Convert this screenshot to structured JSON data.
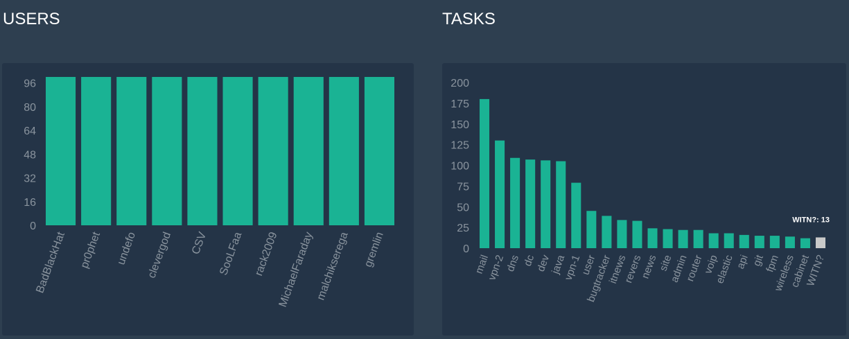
{
  "headers": {
    "users": "USERS",
    "tasks": "TASKS"
  },
  "colors": {
    "bar": "#1ab394",
    "hover_bar": "#c9c9c9",
    "panel": "#243447",
    "background": "#2e3f50",
    "tick": "#8a949e"
  },
  "chart_data": [
    {
      "type": "bar",
      "title": "USERS",
      "categories": [
        "BadBlackHat",
        "pr0phet",
        "undefo",
        "clevergod",
        "CSV",
        "SooLFaa",
        "rack2009",
        "MichaelFaraday",
        "malchikserega",
        "gremlin"
      ],
      "values": [
        100,
        100,
        100,
        100,
        100,
        100,
        100,
        100,
        100,
        100
      ],
      "yticks": [
        0,
        16,
        32,
        48,
        64,
        80,
        96
      ],
      "ylim": [
        0,
        102
      ],
      "grid": false,
      "legend": "none"
    },
    {
      "type": "bar",
      "title": "TASKS",
      "categories": [
        "mail",
        "vpn-2",
        "dns",
        "dc",
        "dev",
        "java",
        "vpn-1",
        "user",
        "bugtracker",
        "itnews",
        "revers",
        "news",
        "site",
        "admin",
        "router",
        "voip",
        "elastic",
        "api",
        "git",
        "fpm",
        "wireless",
        "cabinet",
        "WITN?"
      ],
      "values": [
        180,
        130,
        109,
        107,
        106,
        105,
        79,
        45,
        39,
        34,
        33,
        24,
        23,
        22,
        22,
        18,
        18,
        16,
        15,
        15,
        14,
        12,
        13
      ],
      "yticks": [
        0,
        25,
        50,
        75,
        100,
        125,
        150,
        175,
        200
      ],
      "ylim": [
        0,
        200
      ],
      "grid": false,
      "legend": "none",
      "tooltip": {
        "category": "WITN?",
        "text": "WITN?: 13"
      }
    }
  ]
}
